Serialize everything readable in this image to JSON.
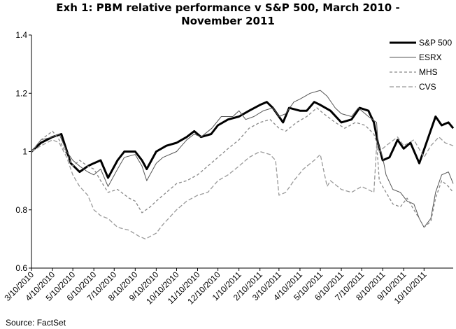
{
  "chart_data": {
    "type": "line",
    "title_line1": "Exh 1: PBM relative performance v S&P 500, March 2010 -",
    "title_line2": "November 2011",
    "xlabel": "",
    "ylabel": "",
    "ylim": [
      0.6,
      1.4
    ],
    "yticks": [
      "0.6",
      "0.8",
      "1",
      "1.2",
      "1.4"
    ],
    "xticks": [
      "3/10/2010",
      "4/10/2010",
      "5/10/2010",
      "6/10/2010",
      "7/10/2010",
      "8/10/2010",
      "9/10/2010",
      "10/10/2010",
      "11/10/2010",
      "12/10/2010",
      "1/10/2011",
      "2/10/2011",
      "3/10/2011",
      "4/10/2011",
      "5/10/2011",
      "6/10/2011",
      "7/10/2011",
      "8/10/2011",
      "9/10/2011",
      "10/10/2011"
    ],
    "grid": false,
    "legend_position": "top-right",
    "x_end": "11/22/2011",
    "series": [
      {
        "name": "S&P 500",
        "color": "#000000",
        "dash": "none",
        "width": 3,
        "points": [
          [
            "3/10/2010",
            1.0
          ],
          [
            "3/24/2010",
            1.03
          ],
          [
            "4/10/2010",
            1.05
          ],
          [
            "4/23/2010",
            1.06
          ],
          [
            "5/7/2010",
            0.96
          ],
          [
            "5/20/2010",
            0.93
          ],
          [
            "6/1/2010",
            0.95
          ],
          [
            "6/10/2010",
            0.96
          ],
          [
            "6/20/2010",
            0.97
          ],
          [
            "7/1/2010",
            0.91
          ],
          [
            "7/15/2010",
            0.97
          ],
          [
            "7/25/2010",
            1.0
          ],
          [
            "8/10/2010",
            1.0
          ],
          [
            "8/20/2010",
            0.97
          ],
          [
            "8/27/2010",
            0.94
          ],
          [
            "9/10/2010",
            1.0
          ],
          [
            "9/25/2010",
            1.02
          ],
          [
            "10/10/2010",
            1.03
          ],
          [
            "10/25/2010",
            1.05
          ],
          [
            "11/5/2010",
            1.07
          ],
          [
            "11/15/2010",
            1.05
          ],
          [
            "11/30/2010",
            1.06
          ],
          [
            "12/10/2010",
            1.09
          ],
          [
            "12/25/2010",
            1.11
          ],
          [
            "1/10/2011",
            1.12
          ],
          [
            "1/25/2011",
            1.14
          ],
          [
            "2/10/2011",
            1.16
          ],
          [
            "2/20/2011",
            1.17
          ],
          [
            "3/1/2011",
            1.15
          ],
          [
            "3/16/2011",
            1.1
          ],
          [
            "3/25/2011",
            1.15
          ],
          [
            "4/10/2011",
            1.14
          ],
          [
            "4/20/2011",
            1.14
          ],
          [
            "5/1/2011",
            1.17
          ],
          [
            "5/10/2011",
            1.16
          ],
          [
            "5/25/2011",
            1.14
          ],
          [
            "6/10/2011",
            1.1
          ],
          [
            "6/25/2011",
            1.11
          ],
          [
            "7/7/2011",
            1.15
          ],
          [
            "7/20/2011",
            1.14
          ],
          [
            "7/28/2011",
            1.1
          ],
          [
            "8/3/2011",
            1.03
          ],
          [
            "8/10/2011",
            0.97
          ],
          [
            "8/20/2011",
            0.98
          ],
          [
            "9/1/2011",
            1.04
          ],
          [
            "9/10/2011",
            1.01
          ],
          [
            "9/20/2011",
            1.03
          ],
          [
            "10/3/2011",
            0.96
          ],
          [
            "10/15/2011",
            1.04
          ],
          [
            "10/27/2011",
            1.12
          ],
          [
            "11/5/2011",
            1.09
          ],
          [
            "11/15/2011",
            1.1
          ],
          [
            "11/22/2011",
            1.08
          ]
        ]
      },
      {
        "name": "ESRX",
        "color": "#555555",
        "dash": "none",
        "width": 1,
        "points": [
          [
            "3/10/2010",
            1.0
          ],
          [
            "3/24/2010",
            1.04
          ],
          [
            "4/10/2010",
            1.05
          ],
          [
            "4/20/2010",
            1.06
          ],
          [
            "5/1/2010",
            1.0
          ],
          [
            "5/10/2010",
            0.97
          ],
          [
            "5/20/2010",
            0.95
          ],
          [
            "6/1/2010",
            0.93
          ],
          [
            "6/10/2010",
            0.92
          ],
          [
            "6/20/2010",
            0.94
          ],
          [
            "7/1/2010",
            0.88
          ],
          [
            "7/15/2010",
            0.94
          ],
          [
            "7/25/2010",
            0.98
          ],
          [
            "8/10/2010",
            0.99
          ],
          [
            "8/20/2010",
            0.95
          ],
          [
            "8/27/2010",
            0.9
          ],
          [
            "9/10/2010",
            0.96
          ],
          [
            "9/20/2010",
            0.98
          ],
          [
            "10/10/2010",
            1.0
          ],
          [
            "10/25/2010",
            1.04
          ],
          [
            "11/5/2010",
            1.06
          ],
          [
            "11/15/2010",
            1.05
          ],
          [
            "12/1/2010",
            1.08
          ],
          [
            "12/15/2010",
            1.12
          ],
          [
            "1/1/2011",
            1.12
          ],
          [
            "1/10/2011",
            1.14
          ],
          [
            "1/20/2011",
            1.11
          ],
          [
            "2/1/2011",
            1.12
          ],
          [
            "2/15/2011",
            1.14
          ],
          [
            "3/1/2011",
            1.15
          ],
          [
            "3/10/2011",
            1.12
          ],
          [
            "3/20/2011",
            1.13
          ],
          [
            "4/1/2011",
            1.17
          ],
          [
            "4/10/2011",
            1.18
          ],
          [
            "4/25/2011",
            1.2
          ],
          [
            "5/10/2011",
            1.21
          ],
          [
            "5/20/2011",
            1.19
          ],
          [
            "6/1/2011",
            1.15
          ],
          [
            "6/10/2011",
            1.13
          ],
          [
            "6/25/2011",
            1.12
          ],
          [
            "7/5/2011",
            1.15
          ],
          [
            "7/20/2011",
            1.12
          ],
          [
            "8/1/2011",
            1.1
          ],
          [
            "8/3/2011",
            1.03
          ],
          [
            "8/10/2011",
            0.98
          ],
          [
            "8/15/2011",
            0.92
          ],
          [
            "8/25/2011",
            0.87
          ],
          [
            "9/5/2011",
            0.86
          ],
          [
            "9/15/2011",
            0.83
          ],
          [
            "9/25/2011",
            0.82
          ],
          [
            "10/3/2011",
            0.77
          ],
          [
            "10/10/2011",
            0.74
          ],
          [
            "10/20/2011",
            0.77
          ],
          [
            "10/27/2011",
            0.86
          ],
          [
            "11/5/2011",
            0.92
          ],
          [
            "11/15/2011",
            0.93
          ],
          [
            "11/22/2011",
            0.89
          ]
        ]
      },
      {
        "name": "MHS",
        "color": "#888888",
        "dash": "4,3",
        "width": 1.3,
        "points": [
          [
            "3/10/2010",
            1.0
          ],
          [
            "3/24/2010",
            1.04
          ],
          [
            "4/10/2010",
            1.07
          ],
          [
            "4/20/2010",
            1.04
          ],
          [
            "5/1/2010",
            0.99
          ],
          [
            "5/10/2010",
            0.95
          ],
          [
            "5/20/2010",
            0.97
          ],
          [
            "6/1/2010",
            0.95
          ],
          [
            "6/10/2010",
            0.94
          ],
          [
            "6/20/2010",
            0.9
          ],
          [
            "7/1/2010",
            0.86
          ],
          [
            "7/15/2010",
            0.87
          ],
          [
            "8/1/2010",
            0.84
          ],
          [
            "8/10/2010",
            0.83
          ],
          [
            "8/20/2010",
            0.79
          ],
          [
            "9/1/2010",
            0.81
          ],
          [
            "9/10/2010",
            0.83
          ],
          [
            "9/25/2010",
            0.86
          ],
          [
            "10/10/2010",
            0.89
          ],
          [
            "10/25/2010",
            0.9
          ],
          [
            "11/10/2010",
            0.92
          ],
          [
            "11/25/2010",
            0.95
          ],
          [
            "12/10/2010",
            0.98
          ],
          [
            "12/25/2010",
            1.01
          ],
          [
            "1/10/2011",
            1.04
          ],
          [
            "1/25/2011",
            1.08
          ],
          [
            "2/10/2011",
            1.1
          ],
          [
            "2/25/2011",
            1.11
          ],
          [
            "3/10/2011",
            1.08
          ],
          [
            "3/20/2011",
            1.07
          ],
          [
            "4/5/2011",
            1.1
          ],
          [
            "4/20/2011",
            1.12
          ],
          [
            "5/5/2011",
            1.15
          ],
          [
            "5/15/2011",
            1.13
          ],
          [
            "6/1/2011",
            1.1
          ],
          [
            "6/15/2011",
            1.08
          ],
          [
            "7/1/2011",
            1.1
          ],
          [
            "7/15/2011",
            1.09
          ],
          [
            "7/28/2011",
            1.06
          ],
          [
            "8/1/2011",
            1.03
          ],
          [
            "8/5/2011",
            0.9
          ],
          [
            "8/15/2011",
            0.86
          ],
          [
            "8/25/2011",
            0.82
          ],
          [
            "9/5/2011",
            0.81
          ],
          [
            "9/15/2011",
            0.84
          ],
          [
            "9/25/2011",
            0.8
          ],
          [
            "10/3/2011",
            0.77
          ],
          [
            "10/10/2011",
            0.74
          ],
          [
            "10/20/2011",
            0.76
          ],
          [
            "10/27/2011",
            0.84
          ],
          [
            "11/5/2011",
            0.9
          ],
          [
            "11/15/2011",
            0.88
          ],
          [
            "11/22/2011",
            0.86
          ]
        ]
      },
      {
        "name": "CVS",
        "color": "#999999",
        "dash": "6,3",
        "width": 1.3,
        "points": [
          [
            "3/10/2010",
            1.0
          ],
          [
            "3/24/2010",
            1.02
          ],
          [
            "4/10/2010",
            1.04
          ],
          [
            "4/20/2010",
            1.03
          ],
          [
            "5/1/2010",
            0.98
          ],
          [
            "5/10/2010",
            0.92
          ],
          [
            "5/20/2010",
            0.88
          ],
          [
            "6/1/2010",
            0.85
          ],
          [
            "6/10/2010",
            0.8
          ],
          [
            "6/20/2010",
            0.78
          ],
          [
            "7/1/2010",
            0.77
          ],
          [
            "7/15/2010",
            0.74
          ],
          [
            "8/1/2010",
            0.73
          ],
          [
            "8/15/2010",
            0.71
          ],
          [
            "8/25/2010",
            0.7
          ],
          [
            "9/10/2010",
            0.72
          ],
          [
            "9/20/2010",
            0.75
          ],
          [
            "10/10/2010",
            0.8
          ],
          [
            "10/25/2010",
            0.83
          ],
          [
            "11/10/2010",
            0.85
          ],
          [
            "11/25/2010",
            0.86
          ],
          [
            "12/10/2010",
            0.9
          ],
          [
            "12/25/2010",
            0.92
          ],
          [
            "1/10/2011",
            0.95
          ],
          [
            "1/25/2011",
            0.98
          ],
          [
            "2/10/2011",
            1.0
          ],
          [
            "2/25/2011",
            0.99
          ],
          [
            "3/5/2011",
            0.97
          ],
          [
            "3/10/2011",
            0.85
          ],
          [
            "3/20/2011",
            0.86
          ],
          [
            "4/1/2011",
            0.9
          ],
          [
            "4/15/2011",
            0.94
          ],
          [
            "5/1/2011",
            0.97
          ],
          [
            "5/10/2011",
            0.99
          ],
          [
            "5/20/2011",
            0.88
          ],
          [
            "5/25/2011",
            0.9
          ],
          [
            "6/10/2011",
            0.87
          ],
          [
            "6/25/2011",
            0.86
          ],
          [
            "7/10/2011",
            0.88
          ],
          [
            "7/28/2011",
            0.86
          ],
          [
            "8/1/2011",
            1.02
          ],
          [
            "8/5/2011",
            1.0
          ],
          [
            "8/15/2011",
            1.02
          ],
          [
            "9/1/2011",
            1.05
          ],
          [
            "9/10/2011",
            1.02
          ],
          [
            "9/25/2011",
            1.04
          ],
          [
            "10/10/2011",
            0.98
          ],
          [
            "10/20/2011",
            1.02
          ],
          [
            "11/1/2011",
            1.05
          ],
          [
            "11/10/2011",
            1.03
          ],
          [
            "11/22/2011",
            1.02
          ]
        ]
      }
    ],
    "source": "Source: FactSet"
  }
}
